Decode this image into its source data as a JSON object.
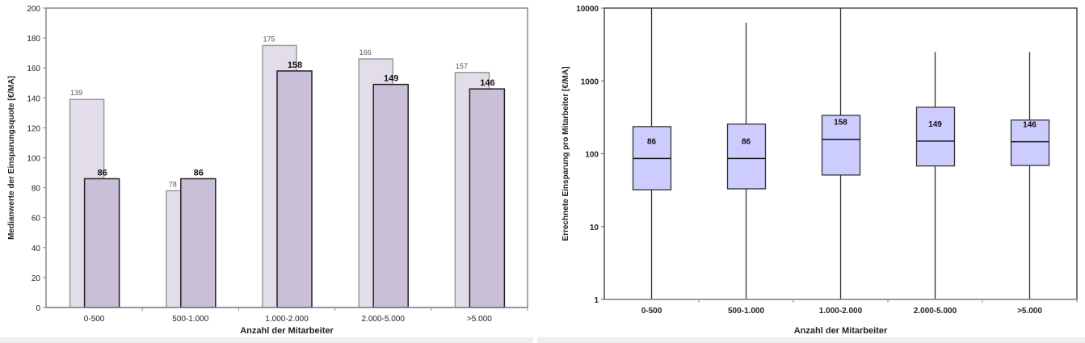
{
  "chart_data": [
    {
      "type": "bar",
      "xlabel": "Anzahl der Mitarbeiter",
      "ylabel": "Medianwerte der Einsparungsquote [€/MA]",
      "categories": [
        "0-500",
        "500-1.000",
        "1.000-2.000",
        "2.000-5.000",
        ">5.000"
      ],
      "series": [
        {
          "values": [
            139,
            78,
            175,
            166,
            157
          ],
          "color": "#e3dde9"
        },
        {
          "values": [
            86,
            86,
            158,
            149,
            146
          ],
          "color": "#c9bfd9"
        }
      ],
      "ylim": [
        0,
        200
      ],
      "yticks": [
        0,
        20,
        40,
        60,
        80,
        100,
        120,
        140,
        160,
        180,
        200
      ],
      "grid": false
    },
    {
      "type": "boxplot",
      "xlabel": "Anzahl der Mitarbeiter",
      "ylabel": "Errechnete Einsparung pro Mitarbeiter [€/MA]",
      "categories": [
        "0-500",
        "500-1.000",
        "1.000-2.000",
        "2.000-5.000",
        ">5.000"
      ],
      "boxes": [
        {
          "min": 1,
          "q1": 32,
          "median": 86,
          "q3": 236,
          "max": 10000
        },
        {
          "min": 1,
          "q1": 33,
          "median": 86,
          "q3": 255,
          "max": 6300
        },
        {
          "min": 1,
          "q1": 51,
          "median": 158,
          "q3": 337,
          "max": 10000
        },
        {
          "min": 1,
          "q1": 68,
          "median": 149,
          "q3": 435,
          "max": 2500
        },
        {
          "min": 1,
          "q1": 69,
          "median": 146,
          "q3": 290,
          "max": 2500
        }
      ],
      "median_labels": [
        "86",
        "86",
        "158",
        "149",
        "146"
      ],
      "yscale": "log",
      "ylim": [
        1,
        10000
      ],
      "yticks": [
        "1",
        "10",
        "100",
        "1000",
        "10000"
      ],
      "box_color": "#ccccff",
      "grid": false
    }
  ]
}
